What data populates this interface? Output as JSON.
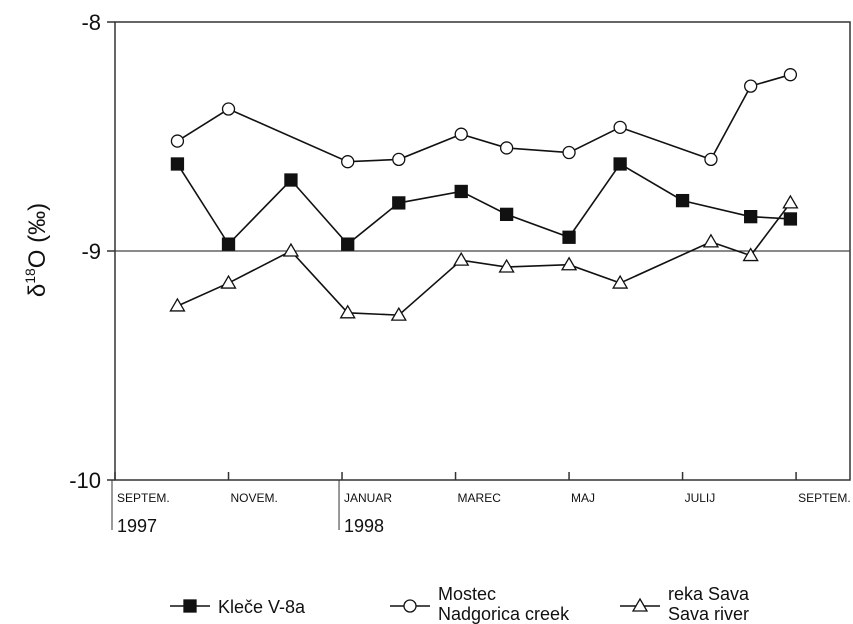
{
  "chart_data": {
    "type": "line",
    "y_label": {
      "symbol": "δ",
      "superscript": "18",
      "main": "O (‰)"
    },
    "ylim": [
      -10,
      -8
    ],
    "y_inverted": true,
    "yticks": [
      -8,
      -9,
      -10
    ],
    "xlim": [
      0,
      12.95
    ],
    "xticks": [
      {
        "value": 0,
        "label": "SEPTEM."
      },
      {
        "value": 2,
        "label": "NOVEM."
      },
      {
        "value": 4,
        "label": "JANUAR"
      },
      {
        "value": 6,
        "label": "MAREC"
      },
      {
        "value": 8,
        "label": "MAJ"
      },
      {
        "value": 10,
        "label": "JULIJ"
      },
      {
        "value": 12,
        "label": "SEPTEM."
      }
    ],
    "year_labels": [
      {
        "value": 0,
        "label": "1997"
      },
      {
        "value": 4,
        "label": "1998"
      }
    ],
    "grid_lines": [
      -9
    ],
    "series": [
      {
        "name": "Kleče V-8a",
        "marker": "square",
        "color": "#111111",
        "x": [
          1.1,
          2.0,
          3.1,
          4.1,
          5.0,
          6.1,
          6.9,
          8.0,
          8.9,
          10.0,
          11.2,
          11.9
        ],
        "values": [
          -8.62,
          -8.97,
          -8.69,
          -8.97,
          -8.79,
          -8.74,
          -8.84,
          -8.94,
          -8.62,
          -8.78,
          -8.85,
          -8.86
        ]
      },
      {
        "name": "Mostec",
        "subname": "Nadgorica creek",
        "marker": "circle",
        "color": "#111111",
        "x": [
          1.1,
          2.0,
          4.1,
          5.0,
          6.1,
          6.9,
          8.0,
          8.9,
          10.5,
          11.2,
          11.9
        ],
        "values": [
          -8.52,
          -8.38,
          -8.61,
          -8.6,
          -8.49,
          -8.55,
          -8.57,
          -8.46,
          -8.6,
          -8.28,
          -8.23
        ]
      },
      {
        "name": "reka Sava",
        "subname": "Sava river",
        "marker": "triangle",
        "color": "#111111",
        "x": [
          1.1,
          2.0,
          3.1,
          4.1,
          5.0,
          6.1,
          6.9,
          8.0,
          8.9,
          10.5,
          11.2,
          11.9
        ],
        "values": [
          -9.24,
          -9.14,
          -9.0,
          -9.27,
          -9.28,
          -9.04,
          -9.07,
          -9.06,
          -9.14,
          -8.96,
          -9.02,
          -8.79
        ]
      }
    ]
  }
}
